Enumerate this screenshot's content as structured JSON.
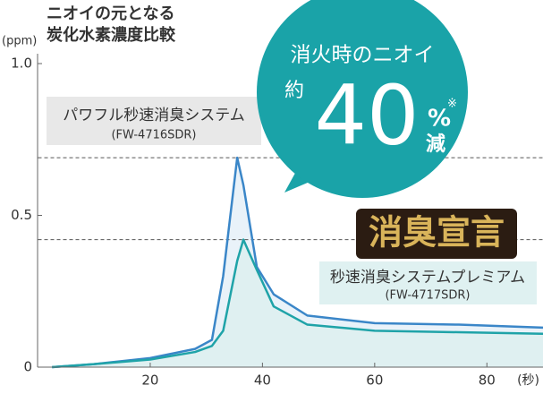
{
  "chart_data": {
    "type": "area",
    "title_lines": [
      "ニオイの元となる",
      "炭化水素濃度比較"
    ],
    "y_unit": "(ppm)",
    "x_unit": "(秒)",
    "x": [
      2.5,
      10,
      20,
      28,
      31,
      33,
      35.5,
      36.6,
      39,
      42,
      48,
      60,
      75,
      90
    ],
    "series": [
      {
        "name": "パワフル秒速消臭システム",
        "model": "(FW-4716SDR)",
        "color": "#3a86c8",
        "values": [
          0,
          0.01,
          0.03,
          0.06,
          0.09,
          0.3,
          0.69,
          0.6,
          0.33,
          0.24,
          0.17,
          0.145,
          0.14,
          0.13
        ]
      },
      {
        "name": "秒速消臭システムプレミアム",
        "model": "(FW-4717SDR)",
        "color": "#1fa3a8",
        "values": [
          0,
          0.01,
          0.025,
          0.05,
          0.07,
          0.12,
          0.35,
          0.42,
          0.32,
          0.2,
          0.14,
          0.12,
          0.115,
          0.11
        ]
      }
    ],
    "xlim": [
      0,
      90
    ],
    "ylim": [
      0,
      1
    ],
    "xticks": [
      20,
      40,
      60,
      80
    ],
    "yticks": [
      0,
      0.5,
      {
        "value": 1,
        "label": "1.0"
      }
    ],
    "badge": {
      "headline": "消火時のニオイ",
      "prefix": "約",
      "number": "40",
      "unit": "%",
      "note": "※",
      "suffix": "減"
    },
    "logo": "消臭宣言"
  }
}
